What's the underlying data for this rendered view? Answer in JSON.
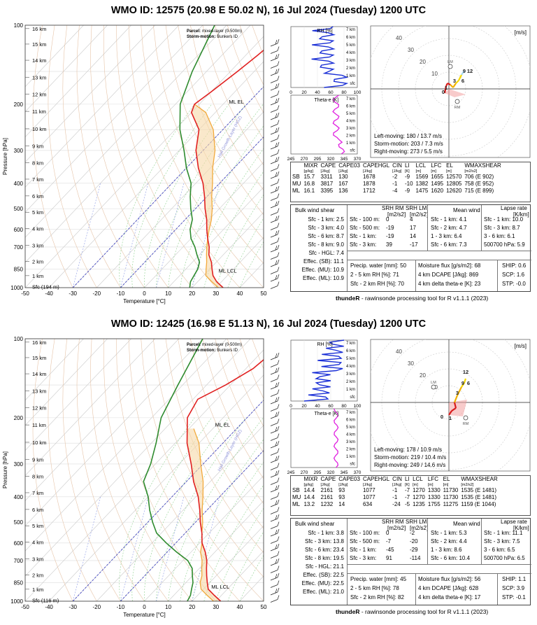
{
  "soundings": [
    {
      "title": "WMO ID: 12575 (20.98 E 50.02 N), 16 Jul 2024 (Tuesday) 1200 UTC",
      "legend": {
        "parcel_label": "Parcel:",
        "parcel": "mixed-layer (0-500m)",
        "storm_label": "Storm-motion:",
        "storm": "Bunkers ID"
      },
      "skewt": {
        "ylabel": "Pressure [hPa]",
        "xlabel": "Temperature [°C]",
        "p_ticks": [
          "100",
          "200",
          "300",
          "400",
          "500",
          "600",
          "700",
          "850",
          "1000"
        ],
        "t_ticks": [
          "-50",
          "-40",
          "-30",
          "-20",
          "-10",
          "0",
          "10",
          "20",
          "30",
          "40",
          "50"
        ],
        "km_ticks": [
          "16 km",
          "15 km",
          "14 km",
          "13 km",
          "12 km",
          "11 km",
          "10 km",
          "9 km",
          "8 km",
          "7 km",
          "6 km",
          "5 km",
          "4 km",
          "3 km",
          "2 km",
          "1 km"
        ],
        "sfc_label": "Sfc (194 m)",
        "el_label": "ML EL",
        "lcl_label": "ML LCL",
        "hail_label": "Hail Growth Layer (HGZ)"
      },
      "hodo": {
        "unit": "[m/s]",
        "rings": [
          "10",
          "20",
          "30",
          "40"
        ],
        "markers": [
          "LM",
          "RM",
          "0",
          "1",
          "3",
          "6",
          "9",
          "12"
        ],
        "lines": [
          "Left-moving: 180 / 13.7 m/s",
          "Storm-motion: 203 / 7.3 m/s",
          "Right-moving: 273 / 5.5 m/s"
        ]
      },
      "rh_panel": {
        "title": "RH [%]",
        "ticks": [
          "0",
          "20",
          "40",
          "60",
          "80",
          "100"
        ],
        "levels": [
          "7 km",
          "6 km",
          "5 km",
          "4 km",
          "3 km",
          "2 km",
          "1 km",
          "sfc"
        ]
      },
      "theta_panel": {
        "title": "Theta-e [K]",
        "ticks": [
          "245",
          "270",
          "295",
          "320",
          "345",
          "370"
        ],
        "levels": [
          "7 km",
          "6 km",
          "5 km",
          "4 km",
          "3 km",
          "2 km",
          "1 km",
          "sfc"
        ]
      },
      "params": {
        "headers": [
          "",
          "MIXR",
          "CAPE",
          "CAPE03",
          "CAPEHGL",
          "CIN",
          "LI",
          "LCL",
          "LFC",
          "EL",
          "WMAXSHEAR"
        ],
        "units": [
          "",
          "[g/kg]",
          "[J/kg]",
          "[J/kg]",
          "[J/kg]",
          "[J/kg]",
          "[K]",
          "[m]",
          "[m]",
          "[m]",
          "[m2/s2]"
        ],
        "rows": [
          [
            "SB",
            "15.7",
            "3311",
            "130",
            "1678",
            "-2",
            "-9",
            "1569",
            "1655",
            "12570",
            "706  (E 902)"
          ],
          [
            "MU",
            "16.8",
            "3817",
            "167",
            "1878",
            "-1",
            "-10",
            "1382",
            "1495",
            "12805",
            "758  (E 952)"
          ],
          [
            "ML",
            "16.1",
            "3395",
            "136",
            "1712",
            "-4",
            "-9",
            "1475",
            "1620",
            "12620",
            "715  (E 899)"
          ]
        ]
      },
      "shear": {
        "hdr_bulk": "Bulk wind shear",
        "hdr_srh_rm": "SRH RM",
        "hdr_srh_lm": "SRH LM",
        "srh_unit": "[m2/s2]",
        "hdr_mean": "Mean wind",
        "hdr_lapse": "Lapse rate",
        "lapse_unit": "[K/km]",
        "bulk": [
          "Sfc - 1 km: 2.5",
          "Sfc - 3 km: 4.0",
          "Sfc - 6 km: 8.7",
          "Sfc - 8 km: 9.0",
          "Sfc - HGL: 7.4",
          "Effec. (SB): 11.1",
          "Effec. (MU): 10.9",
          "Effec. (ML): 10.9"
        ],
        "srh_labels": [
          "Sfc - 100 m:",
          "Sfc - 500 m:",
          "Sfc - 1 km:",
          "Sfc - 3 km:"
        ],
        "srh_rm": [
          "0",
          "-19",
          "-19",
          "39"
        ],
        "srh_lm": [
          "4",
          "17",
          "14",
          "-17"
        ],
        "mean": [
          "Sfc - 1 km: 4.1",
          "Sfc - 2 km: 4.7",
          "1 - 3 km: 6.4",
          "Sfc - 6 km: 7.3"
        ],
        "lapse": [
          "Sfc - 1 km: 10.0",
          "Sfc - 3 km: 8.7",
          "3 - 6 km: 6.1",
          "500700 hPa: 5.9"
        ]
      },
      "moist": {
        "pw": "Precip. water [mm]: 50",
        "rh25": "2 - 5 km RH [%]: 71",
        "rh02": "Sfc - 2 km RH [%]: 70",
        "mflux": "Moisture flux [g/s/m2]: 68",
        "dcape": "4 km DCAPE [J/kg]: 869",
        "dtheta": "4 km delta theta-e [K]: 23",
        "ship": "SHIP: 0.6",
        "scp": "SCP: 1.6",
        "stp": "STP: -0.0"
      },
      "footer": {
        "brand": "thundeR",
        "rest": " - rawinsonde processing tool for R v1.1.1 (2023)"
      }
    },
    {
      "title": "WMO ID: 12425 (16.98 E 51.13 N), 16 Jul 2024 (Tuesday) 1200 UTC",
      "legend": {
        "parcel_label": "Parcel:",
        "parcel": "mixed-layer (0-500m)",
        "storm_label": "Storm-motion:",
        "storm": "Bunkers ID"
      },
      "skewt": {
        "ylabel": "Pressure [hPa]",
        "xlabel": "Temperature [°C]",
        "p_ticks": [
          "100",
          "200",
          "300",
          "400",
          "500",
          "600",
          "700",
          "850",
          "1000"
        ],
        "t_ticks": [
          "-50",
          "-40",
          "-30",
          "-20",
          "-10",
          "0",
          "10",
          "20",
          "30",
          "40",
          "50"
        ],
        "km_ticks": [
          "16 km",
          "15 km",
          "14 km",
          "13 km",
          "12 km",
          "11 km",
          "10 km",
          "9 km",
          "8 km",
          "7 km",
          "6 km",
          "5 km",
          "4 km",
          "3 km",
          "2 km",
          "1 km"
        ],
        "sfc_label": "Sfc (116 m)",
        "el_label": "ML EL",
        "lcl_label": "ML LCL",
        "hail_label": "Hail Growth Layer (HGZ)"
      },
      "hodo": {
        "unit": "[m/s]",
        "rings": [
          "10",
          "20",
          "30",
          "40"
        ],
        "markers": [
          "LM",
          "RM",
          "0",
          "1",
          "3",
          "6",
          "9",
          "12"
        ],
        "lines": [
          "Left-moving: 178 / 10.9 m/s",
          "Storm-motion: 219 / 10.4 m/s",
          "Right-moving: 249 / 14.6 m/s"
        ]
      },
      "rh_panel": {
        "title": "RH [%]",
        "ticks": [
          "0",
          "20",
          "40",
          "60",
          "80",
          "100"
        ],
        "levels": [
          "7 km",
          "6 km",
          "5 km",
          "4 km",
          "3 km",
          "2 km",
          "1 km",
          "sfc"
        ]
      },
      "theta_panel": {
        "title": "Theta-e [K]",
        "ticks": [
          "245",
          "270",
          "295",
          "320",
          "345",
          "370"
        ],
        "levels": [
          "7 km",
          "6 km",
          "5 km",
          "4 km",
          "3 km",
          "2 km",
          "1 km",
          "sfc"
        ]
      },
      "params": {
        "headers": [
          "",
          "MIXR",
          "CAPE",
          "CAPE03",
          "CAPEHGL",
          "CIN",
          "LI",
          "LCL",
          "LFC",
          "EL",
          "WMAXSHEAR"
        ],
        "units": [
          "",
          "[g/kg]",
          "[J/kg]",
          "[J/kg]",
          "[J/kg]",
          "[J/kg]",
          "[K]",
          "[m]",
          "[m]",
          "[m]",
          "[m2/s2]"
        ],
        "rows": [
          [
            "SB",
            "14.4",
            "2161",
            "93",
            "1077",
            "-1",
            "-7",
            "1270",
            "1330",
            "11730",
            "1535  (E 1481)"
          ],
          [
            "MU",
            "14.4",
            "2161",
            "93",
            "1077",
            "-1",
            "-7",
            "1270",
            "1330",
            "11730",
            "1535  (E 1481)"
          ],
          [
            "ML",
            "13.2",
            "1232",
            "14",
            "634",
            "-24",
            "-5",
            "1235",
            "1755",
            "11275",
            "1159  (E 1044)"
          ]
        ]
      },
      "shear": {
        "hdr_bulk": "Bulk wind shear",
        "hdr_srh_rm": "SRH RM",
        "hdr_srh_lm": "SRH LM",
        "srh_unit": "[m2/s2]",
        "hdr_mean": "Mean wind",
        "hdr_lapse": "Lapse rate",
        "lapse_unit": "[K/km]",
        "bulk": [
          "Sfc - 1 km: 3.8",
          "Sfc - 3 km: 13.8",
          "Sfc - 6 km: 23.4",
          "Sfc - 8 km: 19.5",
          "Sfc - HGL: 21.1",
          "Effec. (SB): 22.5",
          "Effec. (MU): 22.5",
          "Effec. (ML): 21.0"
        ],
        "srh_labels": [
          "Sfc - 100 m:",
          "Sfc - 500 m:",
          "Sfc - 1 km:",
          "Sfc - 3 km:"
        ],
        "srh_rm": [
          "0",
          "-7",
          "-45",
          "91"
        ],
        "srh_lm": [
          "-2",
          "-20",
          "-29",
          "-114"
        ],
        "mean": [
          "Sfc - 1 km: 5.3",
          "Sfc - 2 km: 4.4",
          "1 - 3 km: 8.6",
          "Sfc - 6 km: 10.4"
        ],
        "lapse": [
          "Sfc - 1 km: 11.1",
          "Sfc - 3 km: 7.5",
          "3 - 6 km: 6.5",
          "500700 hPa: 6.5"
        ]
      },
      "moist": {
        "pw": "Precip. water [mm]: 45",
        "rh25": "2 - 5 km RH [%]: 78",
        "rh02": "Sfc - 2 km RH [%]: 82",
        "mflux": "Moisture flux [g/s/m2]: 56",
        "dcape": "4 km DCAPE [J/kg]: 628",
        "dtheta": "4 km delta theta-e [K]: 17",
        "ship": "SHIP: 1.1",
        "scp": "SCP: 3.9",
        "stp": "STP: -0.1"
      },
      "footer": {
        "brand": "thundeR",
        "rest": " - rawinsonde processing tool for R v1.1.1 (2023)"
      }
    }
  ],
  "chart_data": [
    {
      "type": "line",
      "title": "WMO ID: 12575 (20.98 E 50.02 N), 16 Jul 2024 (Tuesday) 1200 UTC",
      "xlabel": "Temperature [°C]",
      "ylabel": "Pressure [hPa]",
      "xlim": [
        -50,
        50
      ],
      "ylim": [
        1000,
        100
      ],
      "yscale": "log",
      "series": [
        {
          "pressure": [
            1000,
            950,
            900,
            850,
            800,
            750,
            700,
            650,
            600,
            550,
            500,
            450,
            400,
            350,
            300,
            250,
            215,
            200,
            180,
            150,
            130,
            100
          ],
          "temperature": [
            33,
            28,
            24,
            21,
            18,
            14,
            11,
            7,
            3,
            -1,
            -6,
            -11,
            -17,
            -25,
            -33,
            -40,
            -50,
            -52,
            -50,
            -47,
            -45,
            -42
          ]
        },
        {
          "pressure": [
            1000,
            950,
            900,
            850,
            800,
            750,
            700,
            650,
            600,
            550,
            500,
            450,
            400,
            350,
            300,
            250,
            200,
            150,
            100
          ],
          "dewpoint": [
            19,
            17,
            16,
            15,
            13,
            9,
            5,
            0,
            -4,
            -7,
            -12,
            -17,
            -22,
            -30,
            -38,
            -48,
            -58,
            -66,
            -75
          ]
        },
        {
          "pressure": [
            1000,
            950,
            900,
            850,
            800,
            750,
            700,
            650,
            600,
            550,
            500,
            450,
            400,
            350,
            300,
            250,
            215,
            200
          ],
          "parcel": [
            31,
            26,
            21,
            18.5,
            16,
            13,
            10,
            7,
            4,
            1,
            -3,
            -8,
            -13,
            -19,
            -25,
            -34,
            -44,
            -52
          ]
        }
      ]
    },
    {
      "type": "line",
      "title": "WMO ID: 12425 (16.98 E 51.13 N), 16 Jul 2024 (Tuesday) 1200 UTC",
      "xlabel": "Temperature [°C]",
      "ylabel": "Pressure [hPa]",
      "xlim": [
        -50,
        50
      ],
      "ylim": [
        1000,
        100
      ],
      "yscale": "log",
      "series": [
        {
          "pressure": [
            1000,
            950,
            900,
            850,
            800,
            750,
            700,
            650,
            600,
            550,
            500,
            450,
            400,
            350,
            300,
            250,
            200,
            170,
            150,
            130,
            100
          ],
          "temperature": [
            32,
            27,
            22,
            19,
            16,
            13,
            10,
            6,
            1,
            -3,
            -8,
            -13,
            -19,
            -27,
            -35,
            -45,
            -55,
            -58,
            -52,
            -47,
            -44
          ]
        },
        {
          "pressure": [
            1000,
            950,
            900,
            850,
            800,
            750,
            700,
            650,
            600,
            550,
            500,
            450,
            400,
            350,
            300,
            250,
            200,
            150,
            100
          ],
          "dewpoint": [
            18,
            17,
            15,
            13,
            10,
            7,
            2,
            -6,
            -14,
            -22,
            -28,
            -34,
            -40,
            -48,
            -52,
            -58,
            -66,
            -72,
            -80
          ]
        },
        {
          "pressure": [
            1000,
            950,
            900,
            850,
            800,
            750,
            700,
            650,
            600,
            550,
            500,
            450,
            400,
            350,
            300,
            250,
            220
          ],
          "parcel": [
            29,
            24,
            19,
            16,
            14,
            11,
            8,
            4,
            1,
            -3,
            -7,
            -12,
            -17,
            -23,
            -31,
            -40,
            -48
          ]
        }
      ]
    }
  ]
}
